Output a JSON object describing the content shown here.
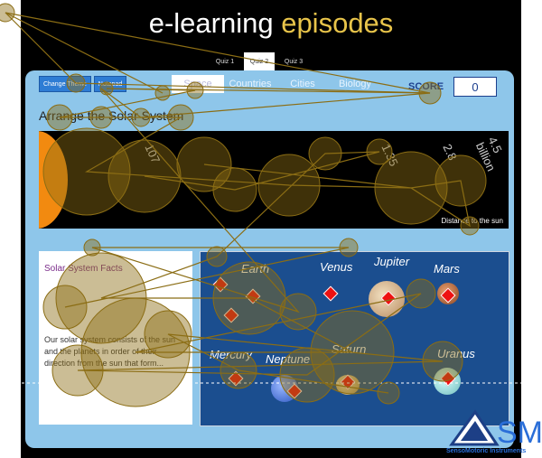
{
  "app": {
    "title_part1": "e-learning",
    "title_part2": "episodes"
  },
  "quiz_tabs": [
    {
      "label": "Quiz 1",
      "active": false
    },
    {
      "label": "Quiz 2",
      "active": true
    },
    {
      "label": "Quiz 3",
      "active": false
    }
  ],
  "toolbar": {
    "change_theme_label": "Change Theme",
    "notepad_label": "Notepad"
  },
  "subtabs": [
    {
      "label": "Space",
      "active": true
    },
    {
      "label": "Countries",
      "active": false
    },
    {
      "label": "Cities",
      "active": false
    },
    {
      "label": "Biology",
      "active": false
    }
  ],
  "score": {
    "label": "SCORE",
    "value": "0"
  },
  "section": {
    "title": "Arrange the Solar System"
  },
  "distance_strip": {
    "labels": [
      "107",
      "1.35",
      "2.8",
      "4.5 billion"
    ],
    "caption": "Distance to the sun"
  },
  "facts": {
    "title": "Solar System Facts",
    "text": "Our solar system consists of the sun and the planets in order of their direction from the sun that form..."
  },
  "planets": [
    {
      "name": "Earth",
      "icon": "earth-icon",
      "color": "#4a7fc1"
    },
    {
      "name": "Venus",
      "icon": "venus-icon",
      "color": "#d9b36a"
    },
    {
      "name": "Jupiter",
      "icon": "jupiter-icon",
      "color": "#c9a27a"
    },
    {
      "name": "Mars",
      "icon": "mars-icon",
      "color": "#c46a3a"
    },
    {
      "name": "Mercury",
      "icon": "mercury-icon",
      "color": "#9a8f86"
    },
    {
      "name": "Neptune",
      "icon": "neptune-icon",
      "color": "#3c6fd6"
    },
    {
      "name": "Saturn",
      "icon": "saturn-icon",
      "color": "#d9c08a"
    },
    {
      "name": "Uranus",
      "icon": "uranus-icon",
      "color": "#7fd6d6"
    }
  ],
  "brand": {
    "logo_icon": "smi-logo-icon",
    "logo_text": "SMI",
    "company": "SensoMotoric Instruments"
  },
  "colors": {
    "accent": "#2e7cd4",
    "panel": "#8ec6ea",
    "gaze": "#8b6d14",
    "score": "#1c3f8e"
  }
}
